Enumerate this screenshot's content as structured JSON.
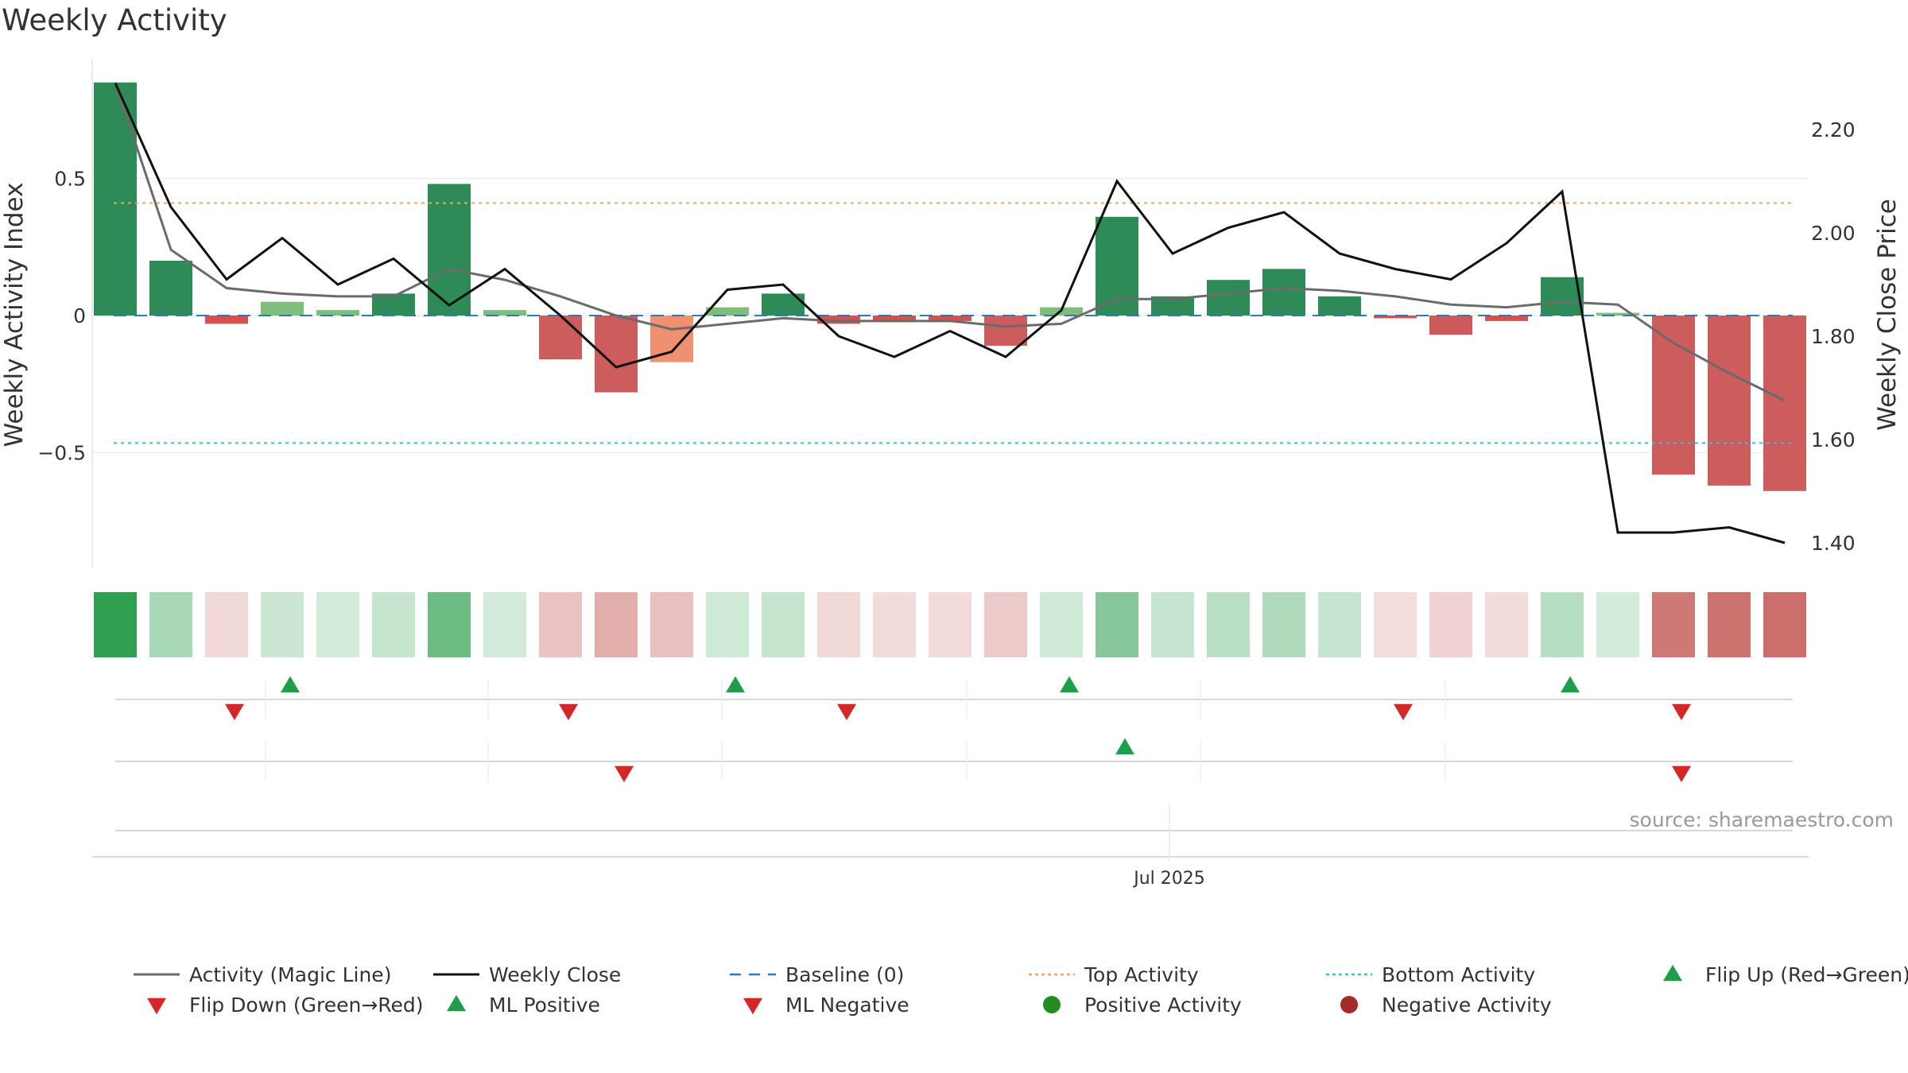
{
  "chart_data": {
    "type": "bar",
    "title": "Weekly Activity",
    "ylabel": "Weekly Activity Index",
    "y2label": "Weekly Close Price",
    "ylim": [
      -0.92,
      0.92
    ],
    "y2lim": [
      1.36,
      2.32
    ],
    "yticks": [
      {
        "value": 0.5,
        "label": "0.5"
      },
      {
        "value": 0,
        "label": "0"
      },
      {
        "value": -0.5,
        "label": "−0.5"
      }
    ],
    "y2ticks": [
      {
        "value": 2.2,
        "label": "2.20"
      },
      {
        "value": 2.0,
        "label": "2.00"
      },
      {
        "value": 1.8,
        "label": "1.80"
      },
      {
        "value": 1.6,
        "label": "1.60"
      },
      {
        "value": 1.4,
        "label": "1.40"
      }
    ],
    "x_tick_label": "Jul 2025",
    "x_tick_week": 19,
    "activity": [
      0.85,
      0.2,
      -0.03,
      0.05,
      0.02,
      0.08,
      0.48,
      0.02,
      -0.16,
      -0.28,
      -0.17,
      0.03,
      0.08,
      -0.03,
      -0.02,
      -0.02,
      -0.11,
      0.03,
      0.36,
      0.07,
      0.13,
      0.17,
      0.07,
      -0.01,
      -0.07,
      -0.02,
      0.14,
      0.01,
      -0.58,
      -0.62,
      -0.64
    ],
    "magic_line": [
      0.85,
      0.24,
      0.1,
      0.08,
      0.07,
      0.07,
      0.17,
      0.13,
      0.07,
      0.0,
      -0.05,
      -0.03,
      -0.01,
      -0.02,
      -0.02,
      -0.02,
      -0.04,
      -0.03,
      0.06,
      0.06,
      0.08,
      0.1,
      0.09,
      0.07,
      0.04,
      0.03,
      0.05,
      0.04,
      -0.1,
      -0.21,
      -0.31
    ],
    "weekly_close": [
      2.29,
      2.05,
      1.91,
      1.99,
      1.9,
      1.95,
      1.86,
      1.93,
      1.84,
      1.74,
      1.77,
      1.89,
      1.9,
      1.8,
      1.76,
      1.81,
      1.76,
      1.85,
      2.1,
      1.96,
      2.01,
      2.04,
      1.96,
      1.93,
      1.91,
      1.98,
      2.08,
      1.42,
      1.42,
      1.43,
      1.4
    ],
    "baseline": 0,
    "top_activity": 0.41,
    "bottom_activity": -0.465,
    "flip_up_weeks": [
      3,
      11,
      17,
      26
    ],
    "flip_down_weeks": [
      2,
      8,
      13,
      23,
      28
    ],
    "ml_positive_weeks": [
      18
    ],
    "ml_negative_weeks": [
      9,
      28
    ],
    "legend": [
      {
        "label": "Activity (Magic Line)",
        "symbol": "line",
        "color": "#6b6b6b"
      },
      {
        "label": "Weekly Close",
        "symbol": "line",
        "color": "#111111"
      },
      {
        "label": "Baseline (0)",
        "symbol": "dashed",
        "color": "#2c7bb6"
      },
      {
        "label": "Top Activity",
        "symbol": "dotted",
        "color": "#f4a261"
      },
      {
        "label": "Bottom Activity",
        "symbol": "dotted",
        "color": "#2ec4d6"
      },
      {
        "label": "Flip Up (Red→Green)",
        "symbol": "triangle-up",
        "color": "#1e9e4a"
      },
      {
        "label": "Flip Down (Green→Red)",
        "symbol": "triangle-down",
        "color": "#d62728"
      },
      {
        "label": "ML Positive",
        "symbol": "triangle-up",
        "color": "#1e9e4a"
      },
      {
        "label": "ML Negative",
        "symbol": "triangle-down",
        "color": "#d62728"
      },
      {
        "label": "Positive Activity",
        "symbol": "circle",
        "color": "#228b22"
      },
      {
        "label": "Negative Activity",
        "symbol": "circle",
        "color": "#a52a2a"
      }
    ],
    "legend_placement": "bottom",
    "grid": true,
    "source": "source: sharemaestro.com"
  }
}
